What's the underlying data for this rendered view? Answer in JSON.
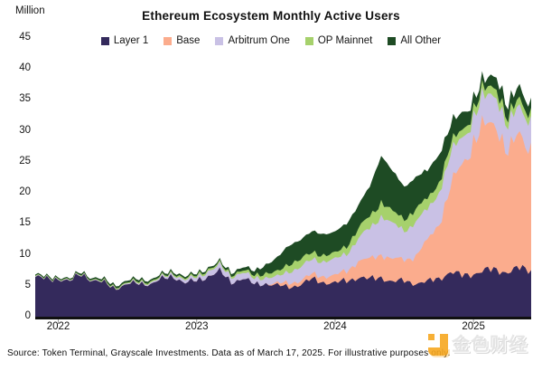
{
  "header": {
    "title": "Ethereum Ecosystem Monthly Active Users",
    "unit_label": "Million"
  },
  "caption": "Source: Token Terminal, Grayscale Investments. Data as of March 17, 2025. For illustrative purposes only.",
  "watermark": {
    "text": "金色财经",
    "brand_color": "#F7A821"
  },
  "chart_data": {
    "type": "area",
    "stacked": true,
    "title": "Ethereum Ecosystem Monthly Active Users",
    "xlabel": "",
    "ylabel": "Million",
    "ylim": [
      0,
      45
    ],
    "y_ticks": [
      0,
      5,
      10,
      15,
      20,
      25,
      30,
      35,
      40,
      45
    ],
    "x_tick_labels": [
      "2022",
      "2023",
      "2024",
      "2025"
    ],
    "x_tick_indices": [
      2,
      14,
      26,
      38
    ],
    "cadence": "monthly",
    "points_per_series": 44,
    "grid": false,
    "legend_position": "top",
    "series": [
      {
        "name": "Layer 1",
        "color": "#342A5C",
        "values": [
          6.4,
          6.0,
          6.2,
          5.6,
          7.0,
          5.8,
          5.4,
          4.6,
          5.2,
          5.4,
          5.3,
          6.0,
          6.6,
          5.4,
          5.8,
          6.6,
          7.2,
          5.6,
          6.2,
          5.2,
          5.4,
          5.0,
          4.8,
          5.2,
          6.0,
          5.6,
          5.4,
          5.8,
          6.4,
          6.0,
          6.4,
          5.6,
          5.8,
          5.4,
          5.6,
          6.2,
          7.2,
          6.6,
          7.0,
          7.4,
          7.6,
          7.2,
          7.8,
          7.6
        ]
      },
      {
        "name": "Base",
        "color": "#FBAC8D",
        "values": [
          0,
          0,
          0,
          0,
          0,
          0,
          0,
          0,
          0,
          0,
          0,
          0,
          0,
          0,
          0,
          0,
          0,
          0,
          0,
          0,
          0,
          0.3,
          0.7,
          0.6,
          0.8,
          1.0,
          1.2,
          1.6,
          2.6,
          3.2,
          3.8,
          3.6,
          3.4,
          4.5,
          6.5,
          9.0,
          13.5,
          18.0,
          21.5,
          23.0,
          24.0,
          19.0,
          21.5,
          20.0
        ]
      },
      {
        "name": "Arbitrum One",
        "color": "#C9C1E5",
        "values": [
          0.1,
          0.1,
          0.1,
          0.1,
          0.1,
          0.1,
          0.1,
          0.1,
          0.15,
          0.2,
          0.2,
          0.3,
          0.4,
          0.5,
          0.6,
          0.8,
          1.0,
          0.9,
          1.0,
          0.9,
          1.0,
          1.1,
          1.8,
          2.2,
          2.4,
          2.4,
          2.6,
          2.8,
          3.6,
          5.0,
          6.2,
          5.6,
          4.8,
          5.4,
          5.0,
          5.2,
          5.0,
          4.4,
          4.0,
          4.5,
          5.0,
          4.0,
          4.5,
          4.6
        ]
      },
      {
        "name": "OP Mainnet",
        "color": "#A6D16C",
        "values": [
          0.1,
          0.1,
          0.1,
          0.1,
          0.1,
          0.1,
          0.15,
          0.15,
          0.15,
          0.2,
          0.2,
          0.2,
          0.2,
          0.25,
          0.3,
          0.3,
          0.3,
          0.3,
          0.4,
          0.5,
          0.7,
          0.8,
          1.2,
          1.3,
          1.1,
          1.0,
          1.0,
          1.2,
          1.6,
          2.0,
          2.2,
          2.0,
          1.9,
          2.0,
          1.8,
          1.6,
          1.5,
          1.3,
          1.2,
          1.3,
          1.4,
          1.2,
          1.3,
          1.2
        ]
      },
      {
        "name": "All Other",
        "color": "#1E4B24",
        "values": [
          0.2,
          0.2,
          0.2,
          0.2,
          0.25,
          0.25,
          0.3,
          0.3,
          0.3,
          0.35,
          0.3,
          0.3,
          0.3,
          0.3,
          0.3,
          0.3,
          0.3,
          0.4,
          0.5,
          0.7,
          1.4,
          2.3,
          3.0,
          3.2,
          3.4,
          3.4,
          3.5,
          3.6,
          3.8,
          4.8,
          7.4,
          6.7,
          5.1,
          5.2,
          4.6,
          4.5,
          3.3,
          2.7,
          1.8,
          1.3,
          2.0,
          2.1,
          1.9,
          1.6
        ]
      }
    ]
  }
}
